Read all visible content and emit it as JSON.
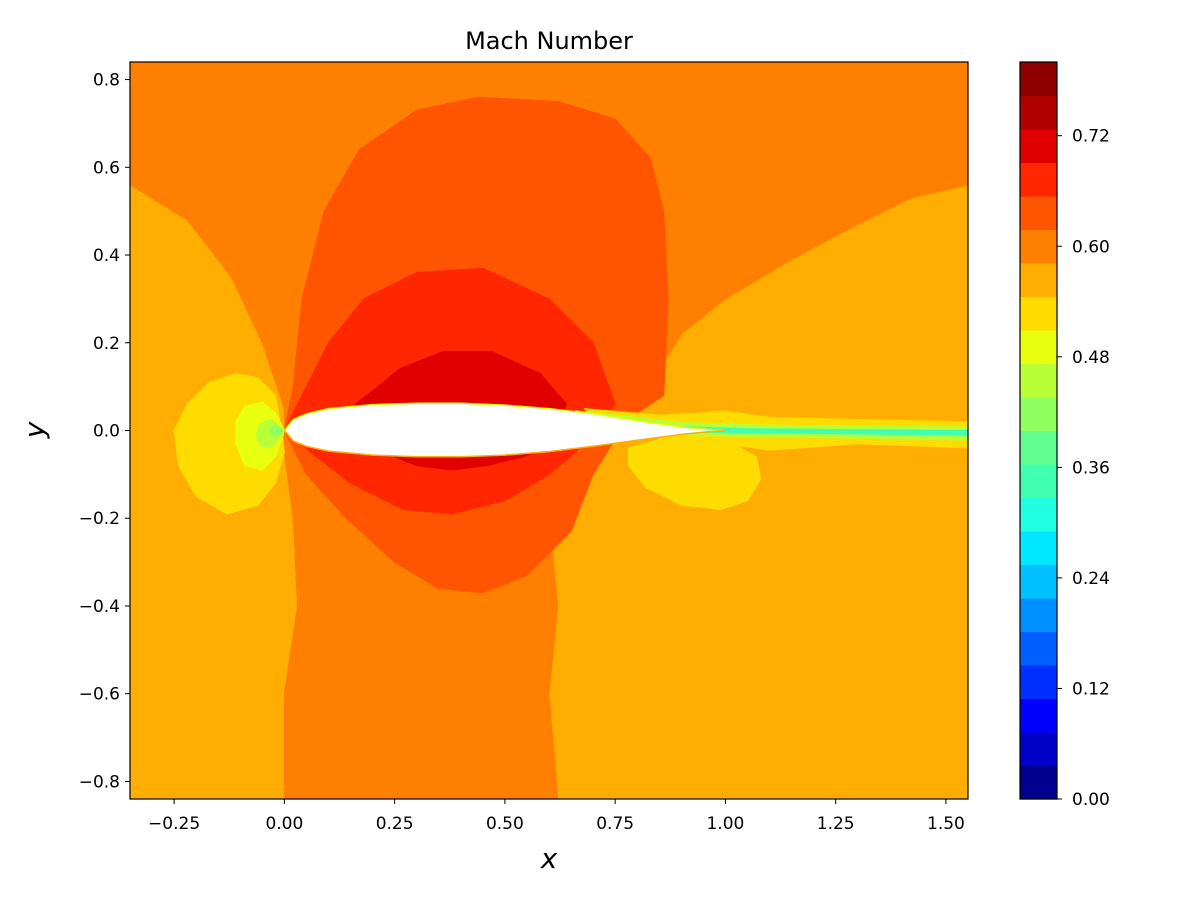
{
  "chart_data": {
    "type": "heatmap",
    "title": "Mach Number",
    "xlabel": "x",
    "ylabel": "y",
    "xlim": [
      -0.35,
      1.55
    ],
    "ylim": [
      -0.84,
      0.84
    ],
    "x_ticks": [
      -0.25,
      0.0,
      0.25,
      0.5,
      0.75,
      1.0,
      1.25,
      1.5
    ],
    "x_tick_labels": [
      "−0.25",
      "0.00",
      "0.25",
      "0.50",
      "0.75",
      "1.00",
      "1.25",
      "1.50"
    ],
    "y_ticks": [
      0.8,
      0.6,
      0.4,
      0.2,
      0.0,
      -0.2,
      -0.4,
      -0.6,
      -0.8
    ],
    "y_tick_labels": [
      "0.8",
      "0.6",
      "0.4",
      "0.2",
      "0.0",
      "−0.2",
      "−0.4",
      "−0.6",
      "−0.8"
    ],
    "colorbar": {
      "range": [
        0.0,
        0.8
      ],
      "levels": 22,
      "ticks": [
        0.0,
        0.12,
        0.24,
        0.36,
        0.48,
        0.6,
        0.72
      ],
      "tick_labels": [
        "0.00",
        "0.12",
        "0.24",
        "0.36",
        "0.48",
        "0.60",
        "0.72"
      ],
      "colors": [
        "#00008f",
        "#0000c8",
        "#0000ff",
        "#0030ff",
        "#0060ff",
        "#0090ff",
        "#00c0ff",
        "#00e8ff",
        "#20ffe0",
        "#40ffb0",
        "#60ff90",
        "#90ff60",
        "#b8ff38",
        "#e8ff10",
        "#ffdc00",
        "#ffad00",
        "#ff8000",
        "#ff5500",
        "#ff2600",
        "#e00000",
        "#b00000",
        "#8f0000"
      ]
    },
    "field": {
      "freestream_level": 15,
      "contours": [
        {
          "level": 16,
          "points": [
            [
              -0.35,
              0.84
            ],
            [
              1.55,
              0.84
            ],
            [
              1.55,
              0.56
            ],
            [
              1.42,
              0.53
            ],
            [
              1.3,
              0.47
            ],
            [
              1.15,
              0.39
            ],
            [
              1.0,
              0.3
            ],
            [
              0.9,
              0.22
            ],
            [
              0.84,
              0.12
            ],
            [
              0.8,
              0.05
            ],
            [
              0.79,
              0.0
            ],
            [
              0.73,
              -0.02
            ],
            [
              0.69,
              -0.05
            ],
            [
              0.65,
              -0.1
            ],
            [
              0.6,
              -0.2
            ],
            [
              0.62,
              -0.4
            ],
            [
              0.6,
              -0.6
            ],
            [
              0.62,
              -0.84
            ],
            [
              0.0,
              -0.84
            ],
            [
              0.0,
              -0.6
            ],
            [
              0.03,
              -0.4
            ],
            [
              0.02,
              -0.2
            ],
            [
              0.0,
              -0.05
            ],
            [
              0.0,
              0.05
            ],
            [
              -0.05,
              0.2
            ],
            [
              -0.12,
              0.35
            ],
            [
              -0.22,
              0.48
            ],
            [
              -0.35,
              0.56
            ]
          ]
        },
        {
          "level": 17,
          "points": [
            [
              0.86,
              0.08
            ],
            [
              0.87,
              0.3
            ],
            [
              0.86,
              0.5
            ],
            [
              0.83,
              0.62
            ],
            [
              0.75,
              0.71
            ],
            [
              0.62,
              0.75
            ],
            [
              0.44,
              0.76
            ],
            [
              0.3,
              0.73
            ],
            [
              0.17,
              0.64
            ],
            [
              0.09,
              0.5
            ],
            [
              0.04,
              0.3
            ],
            [
              0.02,
              0.1
            ],
            [
              0.0,
              0.0
            ],
            [
              0.05,
              -0.1
            ],
            [
              0.14,
              -0.2
            ],
            [
              0.25,
              -0.3
            ],
            [
              0.35,
              -0.36
            ],
            [
              0.45,
              -0.37
            ],
            [
              0.55,
              -0.33
            ],
            [
              0.65,
              -0.23
            ],
            [
              0.7,
              -0.1
            ],
            [
              0.75,
              -0.02
            ],
            [
              0.8,
              0.04
            ]
          ]
        },
        {
          "level": 18,
          "points": [
            [
              0.75,
              0.06
            ],
            [
              0.7,
              0.2
            ],
            [
              0.6,
              0.3
            ],
            [
              0.45,
              0.37
            ],
            [
              0.3,
              0.36
            ],
            [
              0.18,
              0.3
            ],
            [
              0.1,
              0.2
            ],
            [
              0.04,
              0.08
            ],
            [
              0.0,
              0.0
            ],
            [
              0.06,
              -0.05
            ],
            [
              0.15,
              -0.12
            ],
            [
              0.27,
              -0.18
            ],
            [
              0.38,
              -0.19
            ],
            [
              0.5,
              -0.16
            ],
            [
              0.6,
              -0.1
            ],
            [
              0.66,
              -0.05
            ]
          ]
        },
        {
          "level": 19,
          "points": [
            [
              0.64,
              0.06
            ],
            [
              0.58,
              0.13
            ],
            [
              0.47,
              0.18
            ],
            [
              0.36,
              0.18
            ],
            [
              0.26,
              0.14
            ],
            [
              0.2,
              0.09
            ],
            [
              0.16,
              0.06
            ],
            [
              0.2,
              -0.04
            ],
            [
              0.3,
              -0.08
            ],
            [
              0.38,
              -0.09
            ],
            [
              0.46,
              -0.08
            ],
            [
              0.54,
              -0.06
            ],
            [
              0.6,
              -0.04
            ]
          ]
        },
        {
          "level": 14,
          "points": [
            [
              -0.01,
              0.02
            ],
            [
              -0.02,
              0.08
            ],
            [
              -0.06,
              0.12
            ],
            [
              -0.11,
              0.13
            ],
            [
              -0.17,
              0.11
            ],
            [
              -0.22,
              0.06
            ],
            [
              -0.25,
              0.0
            ],
            [
              -0.24,
              -0.08
            ],
            [
              -0.2,
              -0.15
            ],
            [
              -0.13,
              -0.19
            ],
            [
              -0.06,
              -0.17
            ],
            [
              -0.02,
              -0.12
            ],
            [
              0.0,
              -0.05
            ]
          ]
        },
        {
          "level": 13,
          "points": [
            [
              0.0,
              0.0
            ],
            [
              -0.02,
              0.04
            ],
            [
              -0.05,
              0.065
            ],
            [
              -0.09,
              0.055
            ],
            [
              -0.11,
              0.02
            ],
            [
              -0.11,
              -0.03
            ],
            [
              -0.09,
              -0.08
            ],
            [
              -0.05,
              -0.09
            ],
            [
              -0.02,
              -0.06
            ]
          ]
        },
        {
          "level": 12,
          "points": [
            [
              0.0,
              0.0
            ],
            [
              -0.03,
              0.025
            ],
            [
              -0.055,
              0.015
            ],
            [
              -0.065,
              -0.01
            ],
            [
              -0.055,
              -0.035
            ],
            [
              -0.03,
              -0.04
            ]
          ]
        },
        {
          "level": 11,
          "points": [
            [
              0.0,
              0.0
            ],
            [
              -0.02,
              0.012
            ],
            [
              -0.035,
              0.0
            ],
            [
              -0.02,
              -0.015
            ]
          ]
        },
        {
          "level": 14,
          "points": [
            [
              0.78,
              -0.04
            ],
            [
              0.85,
              -0.02
            ],
            [
              1.0,
              -0.02
            ],
            [
              1.07,
              -0.06
            ],
            [
              1.08,
              -0.11
            ],
            [
              1.05,
              -0.16
            ],
            [
              0.99,
              -0.18
            ],
            [
              0.9,
              -0.17
            ],
            [
              0.82,
              -0.13
            ],
            [
              0.78,
              -0.08
            ]
          ]
        },
        {
          "level": 14,
          "points": [
            [
              0.68,
              0.05
            ],
            [
              0.85,
              0.035
            ],
            [
              0.95,
              0.04
            ],
            [
              0.99,
              0.045
            ],
            [
              1.03,
              0.04
            ],
            [
              1.1,
              0.03
            ],
            [
              1.3,
              0.025
            ],
            [
              1.55,
              0.02
            ],
            [
              1.55,
              -0.04
            ],
            [
              1.3,
              -0.03
            ],
            [
              1.1,
              -0.045
            ],
            [
              1.0,
              -0.03
            ],
            [
              0.9,
              -0.02
            ],
            [
              0.75,
              -0.01
            ]
          ]
        },
        {
          "level": 12,
          "points": [
            [
              0.66,
              0.045
            ],
            [
              0.9,
              0.018
            ],
            [
              1.1,
              0.012
            ],
            [
              1.3,
              0.01
            ],
            [
              1.55,
              0.008
            ],
            [
              1.55,
              -0.022
            ],
            [
              1.3,
              -0.017
            ],
            [
              1.1,
              -0.015
            ],
            [
              0.9,
              -0.01
            ],
            [
              0.7,
              -0.005
            ]
          ]
        },
        {
          "level": 9,
          "points": [
            [
              0.7,
              0.03
            ],
            [
              0.9,
              0.009
            ],
            [
              1.05,
              0.004
            ],
            [
              1.3,
              0.002
            ],
            [
              1.55,
              0.0
            ],
            [
              1.55,
              -0.01
            ],
            [
              1.3,
              -0.008
            ],
            [
              1.05,
              -0.005
            ],
            [
              0.85,
              -0.003
            ]
          ]
        }
      ],
      "body_outline": [
        [
          0.0,
          0.0
        ],
        [
          0.02,
          0.025
        ],
        [
          0.05,
          0.038
        ],
        [
          0.1,
          0.05
        ],
        [
          0.2,
          0.059
        ],
        [
          0.3,
          0.062
        ],
        [
          0.4,
          0.062
        ],
        [
          0.5,
          0.058
        ],
        [
          0.6,
          0.05
        ],
        [
          0.7,
          0.038
        ],
        [
          0.8,
          0.022
        ],
        [
          0.9,
          0.008
        ],
        [
          0.96,
          0.002
        ],
        [
          1.0,
          0.0
        ],
        [
          0.96,
          -0.003
        ],
        [
          0.9,
          -0.009
        ],
        [
          0.8,
          -0.022
        ],
        [
          0.7,
          -0.036
        ],
        [
          0.6,
          -0.048
        ],
        [
          0.5,
          -0.056
        ],
        [
          0.4,
          -0.06
        ],
        [
          0.3,
          -0.06
        ],
        [
          0.2,
          -0.056
        ],
        [
          0.1,
          -0.047
        ],
        [
          0.05,
          -0.036
        ],
        [
          0.02,
          -0.024
        ]
      ],
      "body_edge_upper_level": 13,
      "body_edge_lower_level": 15
    }
  }
}
